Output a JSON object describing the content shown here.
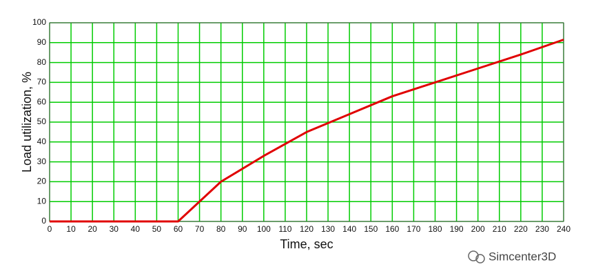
{
  "chart_data": {
    "type": "line",
    "x_label": "Time, sec",
    "y_label": "Load utilization, %",
    "x": [
      0,
      60,
      80,
      100,
      120,
      140,
      160,
      180,
      200,
      220,
      240
    ],
    "values": [
      0,
      0,
      20,
      33,
      45,
      54,
      63,
      70,
      77,
      84,
      91.5
    ],
    "color": "#e00000",
    "grid_color": "#00cc00",
    "xlim": [
      0,
      240
    ],
    "xticks": [
      0,
      10,
      20,
      30,
      40,
      50,
      60,
      70,
      80,
      90,
      100,
      110,
      120,
      130,
      140,
      150,
      160,
      170,
      180,
      190,
      200,
      210,
      220,
      230,
      240
    ],
    "ylim": [
      0,
      100
    ],
    "yticks": [
      0,
      10,
      20,
      30,
      40,
      50,
      60,
      70,
      80,
      90,
      100
    ],
    "grid": true
  },
  "watermark": "Simcenter3D"
}
